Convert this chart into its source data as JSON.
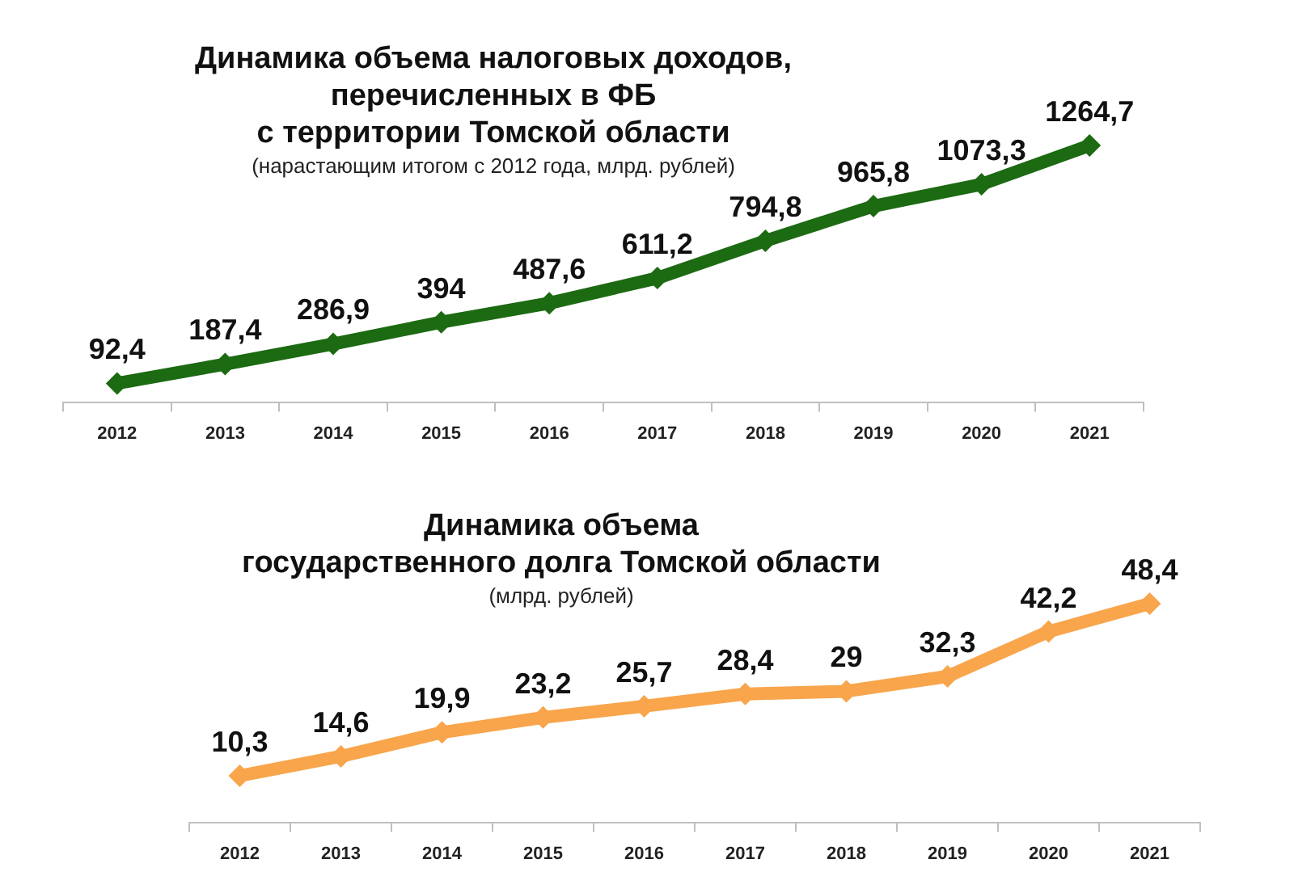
{
  "chart_data": [
    {
      "type": "line",
      "title": "Динамика объема налоговых доходов,\nперечисленных в ФБ\nс территории Томской области",
      "subtitle": "(нарастающим итогом с 2012 года, млрд. рублей)",
      "categories": [
        "2012",
        "2013",
        "2014",
        "2015",
        "2016",
        "2017",
        "2018",
        "2019",
        "2020",
        "2021"
      ],
      "values": [
        92.4,
        187.4,
        286.9,
        394,
        487.6,
        611.2,
        794.8,
        965.8,
        1073.3,
        1264.7
      ],
      "value_labels": [
        "92,4",
        "187,4",
        "286,9",
        "394",
        "487,6",
        "611,2",
        "794,8",
        "965,8",
        "1073,3",
        "1264,7"
      ],
      "color": "#1c6a12",
      "marker": "diamond",
      "tick_labels": "x"
    },
    {
      "type": "line",
      "title": "Динамика объема\nгосударственного долга Томской области",
      "subtitle": "(млрд. рублей)",
      "categories": [
        "2012",
        "2013",
        "2014",
        "2015",
        "2016",
        "2017",
        "2018",
        "2019",
        "2020",
        "2021"
      ],
      "values": [
        10.3,
        14.6,
        19.9,
        23.2,
        25.7,
        28.4,
        29,
        32.3,
        42.2,
        48.4
      ],
      "value_labels": [
        "10,3",
        "14,6",
        "19,9",
        "23,2",
        "25,7",
        "28,4",
        "29",
        "32,3",
        "42,2",
        "48,4"
      ],
      "color": "#f8a54c",
      "marker": "diamond",
      "tick_labels": "x"
    }
  ]
}
